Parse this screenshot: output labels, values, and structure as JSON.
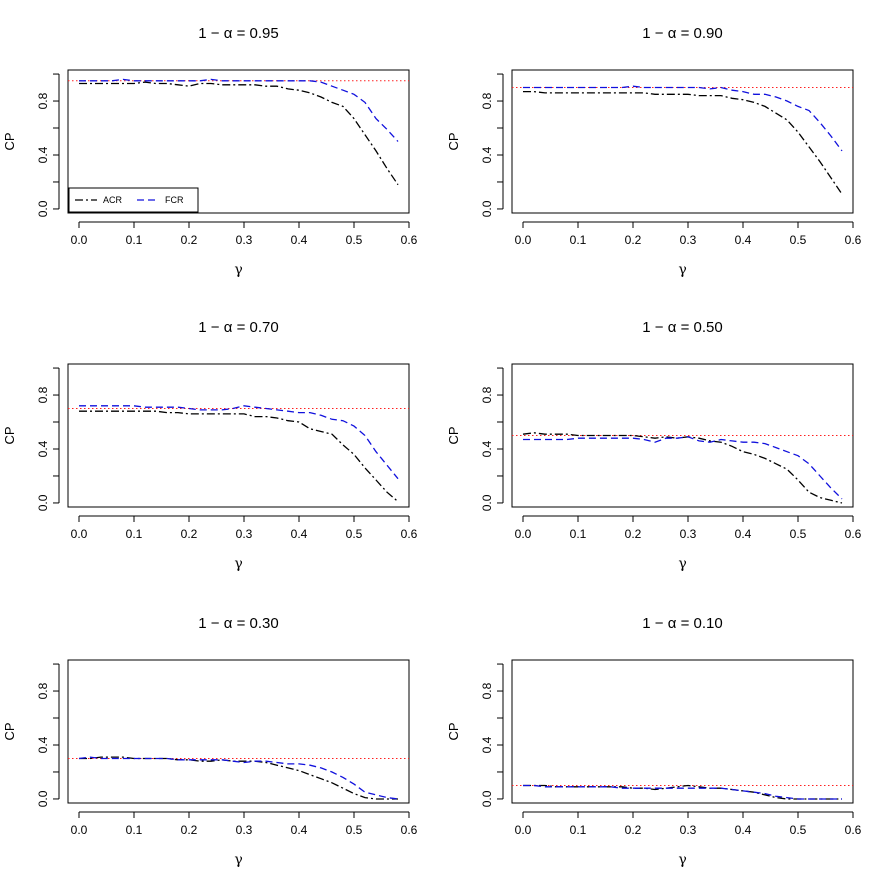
{
  "chart_data": [
    {
      "type": "line",
      "title": "1 − α = 0.95",
      "xlabel": "γ",
      "ylabel": "CP",
      "xlim": [
        -0.02,
        0.6
      ],
      "ylim": [
        -0.03,
        1.03
      ],
      "xticks": [
        "0.0",
        "0.1",
        "0.2",
        "0.3",
        "0.4",
        "0.5",
        "0.6"
      ],
      "yticks": [
        "0.0",
        "0.4",
        "0.8"
      ],
      "reference_line": 0.95,
      "legend": {
        "placement": "bottom-left",
        "entries": [
          "ACR",
          "FCR"
        ]
      },
      "x": [
        0.0,
        0.02,
        0.04,
        0.06,
        0.08,
        0.1,
        0.12,
        0.14,
        0.16,
        0.18,
        0.2,
        0.22,
        0.24,
        0.26,
        0.28,
        0.3,
        0.32,
        0.34,
        0.36,
        0.38,
        0.4,
        0.42,
        0.44,
        0.46,
        0.48,
        0.5,
        0.52,
        0.54,
        0.56,
        0.58
      ],
      "series": [
        {
          "name": "ACR",
          "color": "#000000",
          "dash": "dashdot",
          "values": [
            0.93,
            0.93,
            0.93,
            0.93,
            0.93,
            0.93,
            0.94,
            0.93,
            0.93,
            0.92,
            0.91,
            0.93,
            0.93,
            0.92,
            0.92,
            0.92,
            0.92,
            0.91,
            0.91,
            0.89,
            0.88,
            0.86,
            0.83,
            0.79,
            0.76,
            0.67,
            0.55,
            0.43,
            0.3,
            0.18
          ]
        },
        {
          "name": "FCR",
          "color": "#1111dd",
          "dash": "dashed",
          "values": [
            0.95,
            0.95,
            0.95,
            0.95,
            0.96,
            0.95,
            0.95,
            0.95,
            0.95,
            0.95,
            0.95,
            0.95,
            0.96,
            0.95,
            0.95,
            0.95,
            0.95,
            0.95,
            0.95,
            0.95,
            0.95,
            0.95,
            0.94,
            0.91,
            0.88,
            0.85,
            0.79,
            0.67,
            0.59,
            0.5
          ]
        }
      ]
    },
    {
      "type": "line",
      "title": "1 − α = 0.90",
      "xlabel": "γ",
      "ylabel": "CP",
      "xlim": [
        -0.02,
        0.6
      ],
      "ylim": [
        -0.03,
        1.03
      ],
      "xticks": [
        "0.0",
        "0.1",
        "0.2",
        "0.3",
        "0.4",
        "0.5",
        "0.6"
      ],
      "yticks": [
        "0.0",
        "0.4",
        "0.8"
      ],
      "reference_line": 0.9,
      "x": [
        0.0,
        0.02,
        0.04,
        0.06,
        0.08,
        0.1,
        0.12,
        0.14,
        0.16,
        0.18,
        0.2,
        0.22,
        0.24,
        0.26,
        0.28,
        0.3,
        0.32,
        0.34,
        0.36,
        0.38,
        0.4,
        0.42,
        0.44,
        0.46,
        0.48,
        0.5,
        0.52,
        0.54,
        0.56,
        0.58
      ],
      "series": [
        {
          "name": "ACR",
          "color": "#000000",
          "dash": "dashdot",
          "values": [
            0.87,
            0.87,
            0.86,
            0.86,
            0.86,
            0.86,
            0.86,
            0.86,
            0.86,
            0.86,
            0.86,
            0.86,
            0.85,
            0.85,
            0.85,
            0.85,
            0.84,
            0.84,
            0.84,
            0.82,
            0.81,
            0.79,
            0.76,
            0.71,
            0.66,
            0.57,
            0.46,
            0.35,
            0.23,
            0.11
          ]
        },
        {
          "name": "FCR",
          "color": "#1111dd",
          "dash": "dashed",
          "values": [
            0.9,
            0.9,
            0.9,
            0.9,
            0.9,
            0.9,
            0.9,
            0.9,
            0.9,
            0.9,
            0.91,
            0.9,
            0.9,
            0.9,
            0.9,
            0.9,
            0.9,
            0.89,
            0.9,
            0.88,
            0.87,
            0.85,
            0.85,
            0.83,
            0.8,
            0.76,
            0.73,
            0.64,
            0.54,
            0.43
          ]
        }
      ]
    },
    {
      "type": "line",
      "title": "1 − α = 0.70",
      "xlabel": "γ",
      "ylabel": "CP",
      "xlim": [
        -0.02,
        0.6
      ],
      "ylim": [
        -0.03,
        1.03
      ],
      "xticks": [
        "0.0",
        "0.1",
        "0.2",
        "0.3",
        "0.4",
        "0.5",
        "0.6"
      ],
      "yticks": [
        "0.0",
        "0.4",
        "0.8"
      ],
      "reference_line": 0.7,
      "x": [
        0.0,
        0.02,
        0.04,
        0.06,
        0.08,
        0.1,
        0.12,
        0.14,
        0.16,
        0.18,
        0.2,
        0.22,
        0.24,
        0.26,
        0.28,
        0.3,
        0.32,
        0.34,
        0.36,
        0.38,
        0.4,
        0.42,
        0.44,
        0.46,
        0.48,
        0.5,
        0.52,
        0.54,
        0.56,
        0.58
      ],
      "series": [
        {
          "name": "ACR",
          "color": "#000000",
          "dash": "dashdot",
          "values": [
            0.68,
            0.68,
            0.68,
            0.68,
            0.68,
            0.68,
            0.68,
            0.68,
            0.67,
            0.67,
            0.66,
            0.66,
            0.66,
            0.66,
            0.66,
            0.66,
            0.64,
            0.64,
            0.63,
            0.61,
            0.6,
            0.55,
            0.53,
            0.51,
            0.43,
            0.36,
            0.26,
            0.17,
            0.08,
            0.01
          ]
        },
        {
          "name": "FCR",
          "color": "#1111dd",
          "dash": "dashed",
          "values": [
            0.72,
            0.72,
            0.72,
            0.72,
            0.72,
            0.72,
            0.71,
            0.71,
            0.71,
            0.71,
            0.7,
            0.69,
            0.69,
            0.69,
            0.7,
            0.72,
            0.71,
            0.7,
            0.69,
            0.68,
            0.67,
            0.67,
            0.65,
            0.62,
            0.61,
            0.57,
            0.5,
            0.38,
            0.28,
            0.18
          ]
        }
      ]
    },
    {
      "type": "line",
      "title": "1 − α = 0.50",
      "xlabel": "γ",
      "ylabel": "CP",
      "xlim": [
        -0.02,
        0.6
      ],
      "ylim": [
        -0.03,
        1.03
      ],
      "xticks": [
        "0.0",
        "0.1",
        "0.2",
        "0.3",
        "0.4",
        "0.5",
        "0.6"
      ],
      "yticks": [
        "0.0",
        "0.4",
        "0.8"
      ],
      "reference_line": 0.5,
      "x": [
        0.0,
        0.02,
        0.04,
        0.06,
        0.08,
        0.1,
        0.12,
        0.14,
        0.16,
        0.18,
        0.2,
        0.22,
        0.24,
        0.26,
        0.28,
        0.3,
        0.32,
        0.34,
        0.36,
        0.38,
        0.4,
        0.42,
        0.44,
        0.46,
        0.48,
        0.5,
        0.52,
        0.54,
        0.56,
        0.58
      ],
      "series": [
        {
          "name": "ACR",
          "color": "#000000",
          "dash": "dashdot",
          "values": [
            0.51,
            0.52,
            0.51,
            0.51,
            0.51,
            0.5,
            0.5,
            0.5,
            0.5,
            0.5,
            0.5,
            0.49,
            0.48,
            0.49,
            0.48,
            0.49,
            0.48,
            0.46,
            0.45,
            0.42,
            0.38,
            0.36,
            0.33,
            0.29,
            0.25,
            0.17,
            0.08,
            0.04,
            0.02,
            0.0
          ]
        },
        {
          "name": "FCR",
          "color": "#1111dd",
          "dash": "dashed",
          "values": [
            0.47,
            0.47,
            0.47,
            0.47,
            0.47,
            0.48,
            0.48,
            0.48,
            0.48,
            0.48,
            0.48,
            0.47,
            0.45,
            0.48,
            0.48,
            0.49,
            0.46,
            0.45,
            0.47,
            0.46,
            0.45,
            0.45,
            0.44,
            0.41,
            0.38,
            0.35,
            0.29,
            0.2,
            0.11,
            0.03
          ]
        }
      ]
    },
    {
      "type": "line",
      "title": "1 − α = 0.30",
      "xlabel": "γ",
      "ylabel": "CP",
      "xlim": [
        -0.02,
        0.6
      ],
      "ylim": [
        -0.03,
        1.03
      ],
      "xticks": [
        "0.0",
        "0.1",
        "0.2",
        "0.3",
        "0.4",
        "0.5",
        "0.6"
      ],
      "yticks": [
        "0.0",
        "0.4",
        "0.8"
      ],
      "reference_line": 0.3,
      "x": [
        0.0,
        0.02,
        0.04,
        0.06,
        0.08,
        0.1,
        0.12,
        0.14,
        0.16,
        0.18,
        0.2,
        0.22,
        0.24,
        0.26,
        0.28,
        0.3,
        0.32,
        0.34,
        0.36,
        0.38,
        0.4,
        0.42,
        0.44,
        0.46,
        0.48,
        0.5,
        0.52,
        0.54,
        0.56,
        0.58
      ],
      "series": [
        {
          "name": "ACR",
          "color": "#000000",
          "dash": "dashdot",
          "values": [
            0.3,
            0.3,
            0.31,
            0.31,
            0.31,
            0.3,
            0.3,
            0.3,
            0.3,
            0.29,
            0.29,
            0.28,
            0.28,
            0.29,
            0.28,
            0.28,
            0.28,
            0.27,
            0.25,
            0.23,
            0.21,
            0.18,
            0.15,
            0.12,
            0.08,
            0.04,
            0.01,
            0.0,
            0.0,
            0.0
          ]
        },
        {
          "name": "FCR",
          "color": "#1111dd",
          "dash": "dashed",
          "values": [
            0.3,
            0.31,
            0.3,
            0.3,
            0.3,
            0.3,
            0.3,
            0.3,
            0.3,
            0.29,
            0.29,
            0.29,
            0.29,
            0.29,
            0.28,
            0.27,
            0.28,
            0.28,
            0.27,
            0.26,
            0.26,
            0.25,
            0.23,
            0.2,
            0.16,
            0.11,
            0.05,
            0.03,
            0.01,
            0.0
          ]
        }
      ]
    },
    {
      "type": "line",
      "title": "1 − α = 0.10",
      "xlabel": "γ",
      "ylabel": "CP",
      "xlim": [
        -0.02,
        0.6
      ],
      "ylim": [
        -0.03,
        1.03
      ],
      "xticks": [
        "0.0",
        "0.1",
        "0.2",
        "0.3",
        "0.4",
        "0.5",
        "0.6"
      ],
      "yticks": [
        "0.0",
        "0.4",
        "0.8"
      ],
      "reference_line": 0.1,
      "x": [
        0.0,
        0.02,
        0.04,
        0.06,
        0.08,
        0.1,
        0.12,
        0.14,
        0.16,
        0.18,
        0.2,
        0.22,
        0.24,
        0.26,
        0.28,
        0.3,
        0.32,
        0.34,
        0.36,
        0.38,
        0.4,
        0.42,
        0.44,
        0.46,
        0.48,
        0.5,
        0.52,
        0.54,
        0.56,
        0.58
      ],
      "series": [
        {
          "name": "ACR",
          "color": "#000000",
          "dash": "dashdot",
          "values": [
            0.1,
            0.1,
            0.1,
            0.09,
            0.09,
            0.09,
            0.09,
            0.09,
            0.09,
            0.09,
            0.08,
            0.08,
            0.07,
            0.08,
            0.09,
            0.1,
            0.09,
            0.08,
            0.08,
            0.07,
            0.06,
            0.05,
            0.03,
            0.01,
            0.0,
            0.0,
            0.0,
            0.0,
            0.0,
            0.0
          ]
        },
        {
          "name": "FCR",
          "color": "#1111dd",
          "dash": "dashed",
          "values": [
            0.1,
            0.1,
            0.09,
            0.09,
            0.09,
            0.09,
            0.09,
            0.09,
            0.09,
            0.08,
            0.08,
            0.08,
            0.08,
            0.08,
            0.08,
            0.08,
            0.08,
            0.08,
            0.08,
            0.07,
            0.06,
            0.05,
            0.04,
            0.02,
            0.01,
            0.0,
            0.0,
            0.0,
            0.0,
            0.0
          ]
        }
      ]
    }
  ]
}
